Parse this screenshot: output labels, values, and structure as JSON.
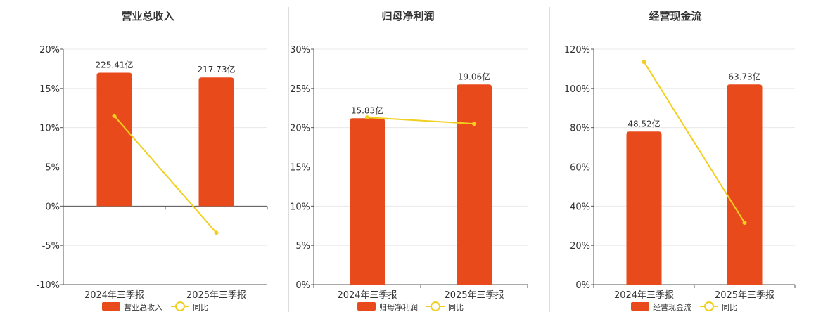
{
  "colors": {
    "bar": "#e84a1b",
    "line": "#f2cf1e",
    "grid": "#e8e8e8",
    "axis": "#555555",
    "divider": "#bbbbbb",
    "text": "#333333"
  },
  "chart_data": [
    {
      "type": "bar",
      "title": "营业总收入",
      "categories": [
        "2024年三季报",
        "2025年三季报"
      ],
      "bar_series": {
        "name": "营业总收入",
        "values": [
          225.41,
          217.73
        ],
        "labels": [
          "225.41亿",
          "217.73亿"
        ]
      },
      "line_series": {
        "name": "同比",
        "values": [
          11.5,
          -3.4
        ]
      },
      "ylim": [
        -10,
        20
      ],
      "yticks": [
        -10,
        -5,
        0,
        5,
        10,
        15,
        20
      ],
      "ytick_labels": [
        "-10%",
        "-5%",
        "0%",
        "5%",
        "10%",
        "15%",
        "20%"
      ],
      "bar_tops_in_axis_units": [
        17.0,
        16.4
      ],
      "legend": "bottom",
      "grid": true
    },
    {
      "type": "bar",
      "title": "归母净利润",
      "categories": [
        "2024年三季报",
        "2025年三季报"
      ],
      "bar_series": {
        "name": "归母净利润",
        "values": [
          15.83,
          19.06
        ],
        "labels": [
          "15.83亿",
          "19.06亿"
        ]
      },
      "line_series": {
        "name": "同比",
        "values": [
          21.3,
          20.5
        ]
      },
      "ylim": [
        0,
        30
      ],
      "yticks": [
        0,
        5,
        10,
        15,
        20,
        25,
        30
      ],
      "ytick_labels": [
        "0%",
        "5%",
        "10%",
        "15%",
        "20%",
        "25%",
        "30%"
      ],
      "bar_tops_in_axis_units": [
        21.2,
        25.5
      ],
      "legend": "bottom",
      "grid": true
    },
    {
      "type": "bar",
      "title": "经营现金流",
      "categories": [
        "2024年三季报",
        "2025年三季报"
      ],
      "bar_series": {
        "name": "经营现金流",
        "values": [
          48.52,
          63.73
        ],
        "labels": [
          "48.52亿",
          "63.73亿"
        ]
      },
      "line_series": {
        "name": "同比",
        "values": [
          113.5,
          31.5
        ]
      },
      "ylim": [
        0,
        120
      ],
      "yticks": [
        0,
        20,
        40,
        60,
        80,
        100,
        120
      ],
      "ytick_labels": [
        "0%",
        "20%",
        "40%",
        "60%",
        "80%",
        "100%",
        "120%"
      ],
      "bar_tops_in_axis_units": [
        78.0,
        102.0
      ],
      "legend": "bottom",
      "grid": true
    }
  ]
}
